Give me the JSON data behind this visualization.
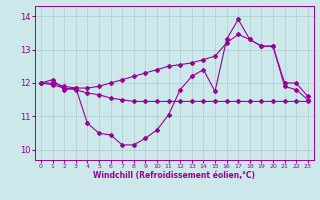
{
  "xlabel": "Windchill (Refroidissement éolien,°C)",
  "xlim": [
    -0.5,
    23.5
  ],
  "ylim": [
    9.7,
    14.3
  ],
  "yticks": [
    10,
    11,
    12,
    13,
    14
  ],
  "xticks": [
    0,
    1,
    2,
    3,
    4,
    5,
    6,
    7,
    8,
    9,
    10,
    11,
    12,
    13,
    14,
    15,
    16,
    17,
    18,
    19,
    20,
    21,
    22,
    23
  ],
  "background_color": "#cce8ea",
  "grid_color": "#aacccc",
  "line_color": "#990099",
  "line1_x": [
    0,
    1,
    2,
    3,
    4,
    5,
    6,
    7,
    8,
    9,
    10,
    11,
    12,
    13,
    14,
    15,
    16,
    17,
    18,
    19,
    20,
    21,
    22,
    23
  ],
  "line1_y": [
    12.0,
    12.1,
    11.8,
    11.85,
    10.8,
    10.5,
    10.45,
    10.15,
    10.15,
    10.35,
    10.6,
    11.05,
    11.8,
    12.2,
    12.4,
    11.75,
    13.3,
    13.9,
    13.3,
    13.1,
    13.1,
    11.9,
    11.8,
    11.5
  ],
  "line2_x": [
    0,
    1,
    2,
    3,
    4,
    5,
    6,
    7,
    8,
    9,
    10,
    11,
    12,
    13,
    14,
    15,
    16,
    17,
    18,
    19,
    20,
    21,
    22,
    23
  ],
  "line2_y": [
    12.0,
    11.95,
    11.85,
    11.8,
    11.7,
    11.65,
    11.55,
    11.5,
    11.45,
    11.45,
    11.45,
    11.45,
    11.45,
    11.45,
    11.45,
    11.45,
    11.45,
    11.45,
    11.45,
    11.45,
    11.45,
    11.45,
    11.45,
    11.45
  ],
  "line3_x": [
    0,
    1,
    2,
    3,
    4,
    5,
    6,
    7,
    8,
    9,
    10,
    11,
    12,
    13,
    14,
    15,
    16,
    17,
    18,
    19,
    20,
    21,
    22,
    23
  ],
  "line3_y": [
    12.0,
    12.0,
    11.9,
    11.85,
    11.85,
    11.9,
    12.0,
    12.1,
    12.2,
    12.3,
    12.4,
    12.5,
    12.55,
    12.6,
    12.7,
    12.8,
    13.2,
    13.45,
    13.3,
    13.1,
    13.1,
    12.0,
    12.0,
    11.6
  ]
}
